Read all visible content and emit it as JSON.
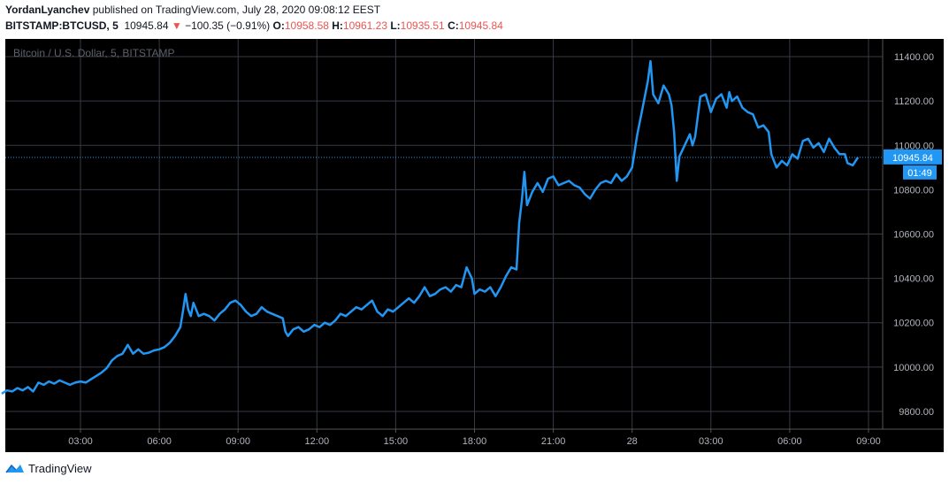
{
  "header": {
    "author": "YordanLyanchev",
    "published_text": "published on TradingView.com, July 28, 2020 09:08:12 EEST",
    "symbol": "BITSTAMP:BTCUSD, 5",
    "last": "10945.84",
    "change": "−100.35 (−0.91%)",
    "o_label": "O:",
    "o_value": "10958.58",
    "h_label": "H:",
    "h_value": "10961.23",
    "l_label": "L:",
    "l_value": "10935.51",
    "c_label": "C:",
    "c_value": "10945.84"
  },
  "footer": {
    "brand": "TradingView"
  },
  "colors": {
    "background": "#000000",
    "line": "#2196f3",
    "grid": "#363a45",
    "axis_text": "#b2b5be",
    "price_label_bg": "#2196f3",
    "negative": "#ef5350"
  },
  "chart_data": {
    "type": "line",
    "title": "Bitcoin / U.S. Dollar, 5, BITSTAMP",
    "xlabel": "",
    "ylabel": "",
    "grid": true,
    "last_price": "10945.84",
    "countdown": "01:49",
    "x_ticks": [
      "03:00",
      "06:00",
      "09:00",
      "12:00",
      "15:00",
      "18:00",
      "21:00",
      "28",
      "03:00",
      "06:00",
      "09:00"
    ],
    "y_ticks": [
      "9800.00",
      "10000.00",
      "10200.00",
      "10400.00",
      "10600.00",
      "10800.00",
      "11000.00",
      "11200.00",
      "11400.00"
    ],
    "ylim": [
      9720,
      11480
    ],
    "x_hours_per_tick": 3,
    "x_ticks_first_hour": 3,
    "series": [
      {
        "values": [
          [
            0.0,
            9880
          ],
          [
            0.2,
            9895
          ],
          [
            0.4,
            9890
          ],
          [
            0.6,
            9905
          ],
          [
            0.8,
            9895
          ],
          [
            1.0,
            9910
          ],
          [
            1.2,
            9890
          ],
          [
            1.4,
            9930
          ],
          [
            1.6,
            9920
          ],
          [
            1.8,
            9935
          ],
          [
            2.0,
            9925
          ],
          [
            2.2,
            9940
          ],
          [
            2.4,
            9930
          ],
          [
            2.6,
            9920
          ],
          [
            2.8,
            9930
          ],
          [
            3.0,
            9935
          ],
          [
            3.2,
            9930
          ],
          [
            3.4,
            9945
          ],
          [
            3.6,
            9960
          ],
          [
            3.8,
            9975
          ],
          [
            4.0,
            9995
          ],
          [
            4.2,
            10030
          ],
          [
            4.4,
            10050
          ],
          [
            4.6,
            10060
          ],
          [
            4.8,
            10100
          ],
          [
            5.0,
            10060
          ],
          [
            5.2,
            10080
          ],
          [
            5.4,
            10060
          ],
          [
            5.6,
            10065
          ],
          [
            5.8,
            10075
          ],
          [
            6.0,
            10080
          ],
          [
            6.2,
            10090
          ],
          [
            6.4,
            10110
          ],
          [
            6.6,
            10140
          ],
          [
            6.8,
            10180
          ],
          [
            6.9,
            10250
          ],
          [
            7.0,
            10330
          ],
          [
            7.1,
            10260
          ],
          [
            7.2,
            10230
          ],
          [
            7.3,
            10290
          ],
          [
            7.5,
            10230
          ],
          [
            7.7,
            10240
          ],
          [
            7.9,
            10230
          ],
          [
            8.1,
            10210
          ],
          [
            8.3,
            10240
          ],
          [
            8.5,
            10260
          ],
          [
            8.7,
            10290
          ],
          [
            8.9,
            10300
          ],
          [
            9.1,
            10280
          ],
          [
            9.3,
            10250
          ],
          [
            9.5,
            10230
          ],
          [
            9.7,
            10240
          ],
          [
            9.9,
            10270
          ],
          [
            10.1,
            10250
          ],
          [
            10.3,
            10240
          ],
          [
            10.5,
            10230
          ],
          [
            10.7,
            10220
          ],
          [
            10.8,
            10160
          ],
          [
            10.9,
            10140
          ],
          [
            11.1,
            10170
          ],
          [
            11.3,
            10180
          ],
          [
            11.5,
            10160
          ],
          [
            11.7,
            10170
          ],
          [
            11.9,
            10190
          ],
          [
            12.1,
            10180
          ],
          [
            12.3,
            10200
          ],
          [
            12.5,
            10190
          ],
          [
            12.7,
            10210
          ],
          [
            12.9,
            10240
          ],
          [
            13.1,
            10230
          ],
          [
            13.3,
            10250
          ],
          [
            13.5,
            10270
          ],
          [
            13.7,
            10260
          ],
          [
            13.9,
            10280
          ],
          [
            14.1,
            10300
          ],
          [
            14.3,
            10250
          ],
          [
            14.5,
            10230
          ],
          [
            14.7,
            10260
          ],
          [
            14.9,
            10250
          ],
          [
            15.1,
            10270
          ],
          [
            15.3,
            10290
          ],
          [
            15.5,
            10310
          ],
          [
            15.7,
            10290
          ],
          [
            15.9,
            10320
          ],
          [
            16.1,
            10360
          ],
          [
            16.3,
            10320
          ],
          [
            16.5,
            10330
          ],
          [
            16.7,
            10350
          ],
          [
            16.9,
            10360
          ],
          [
            17.1,
            10340
          ],
          [
            17.3,
            10370
          ],
          [
            17.5,
            10360
          ],
          [
            17.7,
            10450
          ],
          [
            17.9,
            10400
          ],
          [
            18.0,
            10330
          ],
          [
            18.2,
            10350
          ],
          [
            18.4,
            10340
          ],
          [
            18.6,
            10360
          ],
          [
            18.8,
            10320
          ],
          [
            19.0,
            10360
          ],
          [
            19.2,
            10410
          ],
          [
            19.4,
            10450
          ],
          [
            19.6,
            10440
          ],
          [
            19.7,
            10650
          ],
          [
            19.8,
            10750
          ],
          [
            19.9,
            10880
          ],
          [
            20.0,
            10730
          ],
          [
            20.2,
            10790
          ],
          [
            20.4,
            10830
          ],
          [
            20.6,
            10790
          ],
          [
            20.8,
            10850
          ],
          [
            21.0,
            10860
          ],
          [
            21.2,
            10820
          ],
          [
            21.4,
            10830
          ],
          [
            21.6,
            10840
          ],
          [
            21.8,
            10820
          ],
          [
            22.0,
            10810
          ],
          [
            22.2,
            10780
          ],
          [
            22.4,
            10760
          ],
          [
            22.6,
            10800
          ],
          [
            22.8,
            10830
          ],
          [
            23.0,
            10840
          ],
          [
            23.2,
            10830
          ],
          [
            23.4,
            10870
          ],
          [
            23.6,
            10840
          ],
          [
            23.8,
            10860
          ],
          [
            24.0,
            10900
          ],
          [
            24.2,
            11050
          ],
          [
            24.4,
            11170
          ],
          [
            24.6,
            11290
          ],
          [
            24.7,
            11380
          ],
          [
            24.8,
            11230
          ],
          [
            25.0,
            11190
          ],
          [
            25.2,
            11270
          ],
          [
            25.4,
            11230
          ],
          [
            25.5,
            11180
          ],
          [
            25.6,
            11060
          ],
          [
            25.7,
            10840
          ],
          [
            25.8,
            10950
          ],
          [
            26.0,
            11000
          ],
          [
            26.2,
            11050
          ],
          [
            26.3,
            11000
          ],
          [
            26.4,
            11040
          ],
          [
            26.6,
            11220
          ],
          [
            26.8,
            11230
          ],
          [
            27.0,
            11150
          ],
          [
            27.2,
            11210
          ],
          [
            27.4,
            11230
          ],
          [
            27.6,
            11170
          ],
          [
            27.7,
            11240
          ],
          [
            27.8,
            11200
          ],
          [
            28.0,
            11220
          ],
          [
            28.2,
            11170
          ],
          [
            28.4,
            11150
          ],
          [
            28.6,
            11140
          ],
          [
            28.8,
            11080
          ],
          [
            29.0,
            11090
          ],
          [
            29.2,
            11060
          ],
          [
            29.3,
            10960
          ],
          [
            29.5,
            10900
          ],
          [
            29.7,
            10930
          ],
          [
            29.9,
            10910
          ],
          [
            30.1,
            10960
          ],
          [
            30.3,
            10940
          ],
          [
            30.5,
            11020
          ],
          [
            30.7,
            11030
          ],
          [
            30.9,
            10990
          ],
          [
            31.1,
            11010
          ],
          [
            31.3,
            10970
          ],
          [
            31.5,
            11030
          ],
          [
            31.7,
            10990
          ],
          [
            31.9,
            10960
          ],
          [
            32.1,
            10960
          ],
          [
            32.2,
            10920
          ],
          [
            32.4,
            10910
          ],
          [
            32.6,
            10946
          ]
        ]
      }
    ]
  }
}
